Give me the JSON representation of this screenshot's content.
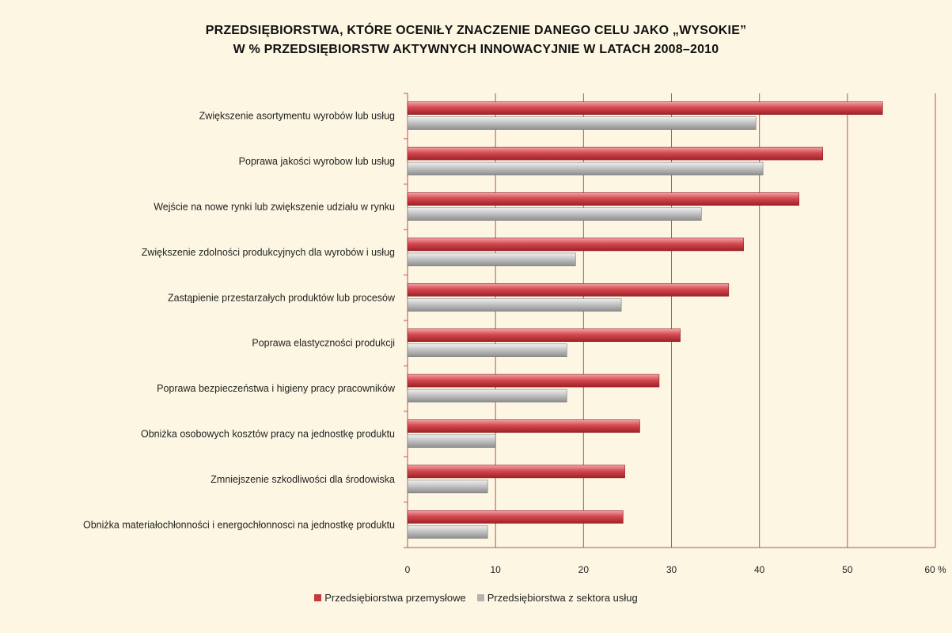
{
  "chart_data": {
    "type": "bar",
    "orientation": "horizontal",
    "title_line1": "PRZEDSIĘBIORSTWA, KTÓRE OCENIŁY ZNACZENIE DANEGO CELU JAKO „WYSOKIE”",
    "title_line2": "W % PRZEDSIĘBIORSTW AKTYWNYCH INNOWACYJNIE W LATACH 2008–2010",
    "categories": [
      "Zwiększenie asortymentu wyrobów lub usług",
      "Poprawa jakości wyrobow lub usług",
      "Wejście na nowe rynki lub zwiększenie udziału w rynku",
      "Zwiększenie zdolności produkcyjnych dla wyrobów i usług",
      "Zastąpienie przestarzałych produktów lub procesów",
      "Poprawa elastyczności produkcji",
      "Poprawa bezpieczeństwa i higieny pracy pracowników",
      "Obniżka osobowych kosztów pracy na jednostkę produktu",
      "Zmniejszenie szkodliwości dla środowiska",
      "Obniżka materiałochłonności i energochłonnosci na jednostkę produktu"
    ],
    "series": [
      {
        "name": "Przedsiębiorstwa przemysłowe",
        "color": "#c8383f",
        "values": [
          54.0,
          47.2,
          44.5,
          38.2,
          36.5,
          31.0,
          28.6,
          26.4,
          24.7,
          24.5
        ]
      },
      {
        "name": "Przedsiębiorstwa z sektora usług",
        "color": "#b3b3b3",
        "values": [
          39.6,
          40.4,
          33.4,
          19.1,
          24.3,
          18.1,
          18.1,
          10.0,
          9.1,
          9.1
        ]
      }
    ],
    "x_ticks": [
      "0",
      "10",
      "20",
      "30",
      "40",
      "50",
      "60 %"
    ],
    "xlim": [
      0,
      60
    ],
    "grid": true,
    "legend_position": "bottom",
    "axis_color": "#c0504d",
    "background": "#fdf6e3"
  }
}
